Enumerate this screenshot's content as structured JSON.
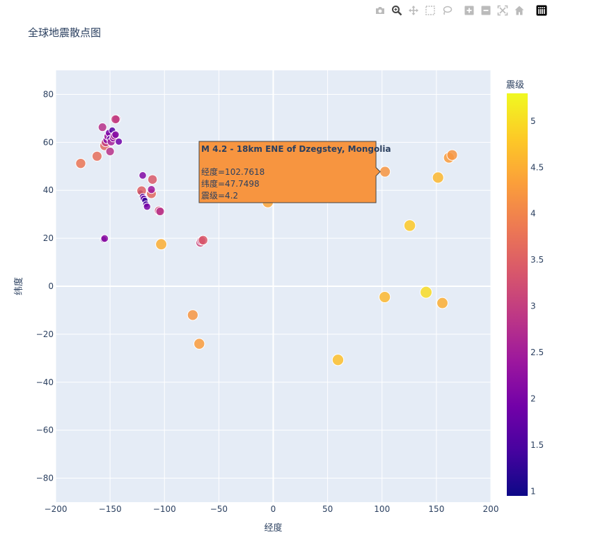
{
  "modebar": {
    "icons": [
      "camera-icon",
      "zoom-icon",
      "pan-icon",
      "box-select-icon",
      "lasso-icon",
      "zoom-in-icon",
      "zoom-out-icon",
      "autoscale-icon",
      "reset-axes-icon",
      "plotly-logo-icon"
    ],
    "icon_color": "#bbbbbb",
    "active_color": "#444444"
  },
  "chart_data": {
    "type": "scatter",
    "title": "全球地震散点图",
    "xlabel": "经度",
    "ylabel": "纬度",
    "xlim": [
      -200,
      200
    ],
    "ylim": [
      -90,
      90
    ],
    "x_ticks": [
      -200,
      -150,
      -100,
      -50,
      0,
      50,
      100,
      150,
      200
    ],
    "y_ticks": [
      -80,
      -60,
      -40,
      -20,
      0,
      20,
      40,
      60,
      80
    ],
    "x_tick_labels": [
      "−200",
      "−150",
      "−100",
      "−50",
      "0",
      "50",
      "100",
      "150",
      "200"
    ],
    "y_tick_labels": [
      "−80",
      "−60",
      "−40",
      "−20",
      "0",
      "20",
      "40",
      "60",
      "80"
    ],
    "grid": true,
    "plot_bgcolor": "#e5ecf6",
    "colorscale_name": "Plasma",
    "colorscale": [
      "#0d0887",
      "#46039f",
      "#7201a8",
      "#9c179e",
      "#bd3786",
      "#d8576b",
      "#ed7953",
      "#fb9f3a",
      "#fdca26",
      "#f0f921"
    ],
    "colorbar": {
      "title": "震级",
      "range": [
        0.95,
        5.3
      ],
      "ticks": [
        1,
        1.5,
        2,
        2.5,
        3,
        3.5,
        4,
        4.5,
        5
      ],
      "tick_labels": [
        "1",
        "1.5",
        "2",
        "2.5",
        "3",
        "3.5",
        "4",
        "4.5",
        "5"
      ]
    },
    "points": [
      {
        "x": -177,
        "y": 51.2,
        "mag": 3.8
      },
      {
        "x": -162,
        "y": 54.2,
        "mag": 3.7
      },
      {
        "x": -157,
        "y": 66.3,
        "mag": 2.8
      },
      {
        "x": -155,
        "y": 58.6,
        "mag": 3.6
      },
      {
        "x": -154,
        "y": 60.0,
        "mag": 3.0
      },
      {
        "x": -153,
        "y": 61.0,
        "mag": 2.2
      },
      {
        "x": -152,
        "y": 62.5,
        "mag": 2.4
      },
      {
        "x": -151,
        "y": 63.9,
        "mag": 2.0
      },
      {
        "x": -150,
        "y": 61.5,
        "mag": 1.8
      },
      {
        "x": -150,
        "y": 56.2,
        "mag": 2.8
      },
      {
        "x": -149,
        "y": 60.2,
        "mag": 2.5
      },
      {
        "x": -148,
        "y": 65.0,
        "mag": 1.6
      },
      {
        "x": -147,
        "y": 61.8,
        "mag": 2.3
      },
      {
        "x": -146,
        "y": 62.7,
        "mag": 2.6
      },
      {
        "x": -145,
        "y": 63.2,
        "mag": 2.1
      },
      {
        "x": -144,
        "y": 69.7,
        "mag": 2.7
      },
      {
        "x": -145,
        "y": 69.6,
        "mag": 3.0
      },
      {
        "x": -142,
        "y": 60.3,
        "mag": 1.9
      },
      {
        "x": -156,
        "y": 19.5,
        "mag": 1.7
      },
      {
        "x": -155,
        "y": 19.9,
        "mag": 2.2
      },
      {
        "x": -120,
        "y": 46.2,
        "mag": 2.1
      },
      {
        "x": -122,
        "y": 38.9,
        "mag": 1.2
      },
      {
        "x": -121,
        "y": 39.8,
        "mag": 3.5
      },
      {
        "x": -120,
        "y": 37.3,
        "mag": 1.6
      },
      {
        "x": -119,
        "y": 36.5,
        "mag": 1.8
      },
      {
        "x": -118,
        "y": 35.8,
        "mag": 1.3
      },
      {
        "x": -117,
        "y": 34.2,
        "mag": 1.5
      },
      {
        "x": -116,
        "y": 33.2,
        "mag": 2.0
      },
      {
        "x": -112,
        "y": 38.6,
        "mag": 3.6
      },
      {
        "x": -112,
        "y": 40.3,
        "mag": 2.4
      },
      {
        "x": -111,
        "y": 44.5,
        "mag": 3.4
      },
      {
        "x": -105,
        "y": 31.5,
        "mag": 3.2
      },
      {
        "x": -104,
        "y": 31.2,
        "mag": 2.8
      },
      {
        "x": -103,
        "y": 17.5,
        "mag": 4.5
      },
      {
        "x": -67,
        "y": 18.2,
        "mag": 3.1
      },
      {
        "x": -66,
        "y": 19.0,
        "mag": 3.0
      },
      {
        "x": -64.5,
        "y": 19.2,
        "mag": 3.4
      },
      {
        "x": -74,
        "y": -12.0,
        "mag": 4.2
      },
      {
        "x": -68,
        "y": -24.0,
        "mag": 4.3
      },
      {
        "x": -5,
        "y": 35.0,
        "mag": 4.4
      },
      {
        "x": 59.5,
        "y": -30.7,
        "mag": 4.7
      },
      {
        "x": 102.7618,
        "y": 47.7498,
        "mag": 4.2
      },
      {
        "x": 102.5,
        "y": -4.5,
        "mag": 4.6
      },
      {
        "x": 125.5,
        "y": 25.3,
        "mag": 4.8
      },
      {
        "x": 140.5,
        "y": -2.5,
        "mag": 5.0
      },
      {
        "x": 151.5,
        "y": 45.3,
        "mag": 4.6
      },
      {
        "x": 155.5,
        "y": -7.0,
        "mag": 4.5
      },
      {
        "x": 161.5,
        "y": 53.6,
        "mag": 4.3
      },
      {
        "x": 164.5,
        "y": 54.7,
        "mag": 4.2
      }
    ],
    "hover": {
      "title": "M 4.2 - 18km ENE of Dzegstey, Mongolia",
      "lines": [
        "经度=102.7618",
        "纬度=47.7498",
        "震级=4.2"
      ],
      "bgcolor": "#f79540"
    }
  }
}
